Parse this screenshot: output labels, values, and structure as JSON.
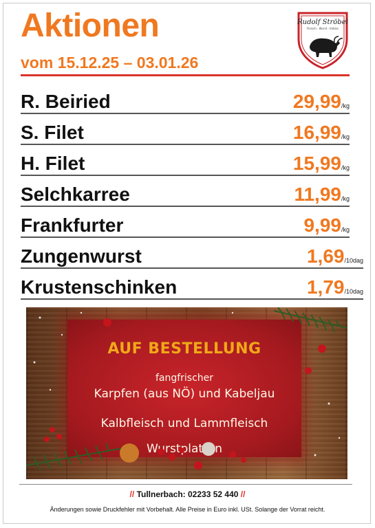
{
  "header": {
    "title": "Aktionen",
    "date_range": "vom 15.12.25 – 03.01.26"
  },
  "logo": {
    "brand": "Rudolf Ströbel",
    "tagline": "Fleisch · Wurst · Imbiss",
    "icon": "bull-icon"
  },
  "products": [
    {
      "name": "R. Beiried",
      "price": "29,99",
      "unit": "/kg"
    },
    {
      "name": "S. Filet",
      "price": "16,99",
      "unit": "/kg"
    },
    {
      "name": "H. Filet",
      "price": "15,99",
      "unit": "/kg"
    },
    {
      "name": "Selchkarree",
      "price": "11,99",
      "unit": "/kg"
    },
    {
      "name": "Frankfurter",
      "price": "9,99",
      "unit": "/kg"
    },
    {
      "name": "Zungenwurst",
      "price": "1,69",
      "unit": "/10dag"
    },
    {
      "name": "Krustenschinken",
      "price": "1,79",
      "unit": "/10dag"
    }
  ],
  "promo": {
    "heading": "AUF BESTELLUNG",
    "line1": "fangfrischer",
    "line2": "Karpfen (aus NÖ) und Kabeljau",
    "line3": "Kalbfleisch und Lammfleisch",
    "line4": "Wurstplatten"
  },
  "footer": {
    "slashes_left": "//",
    "phone": "Tullnerbach: 02233 52 440",
    "slashes_right": "//",
    "disclaimer": "Änderungen sowie Druckfehler mit Vorbehalt. Alle Preise in Euro inkl. USt. Solange der Vorrat reicht."
  },
  "colors": {
    "accent_orange": "#f07820",
    "rule_red": "#d8332a",
    "panel_red": "#a51a1f",
    "heading_gold": "#f0a818"
  }
}
